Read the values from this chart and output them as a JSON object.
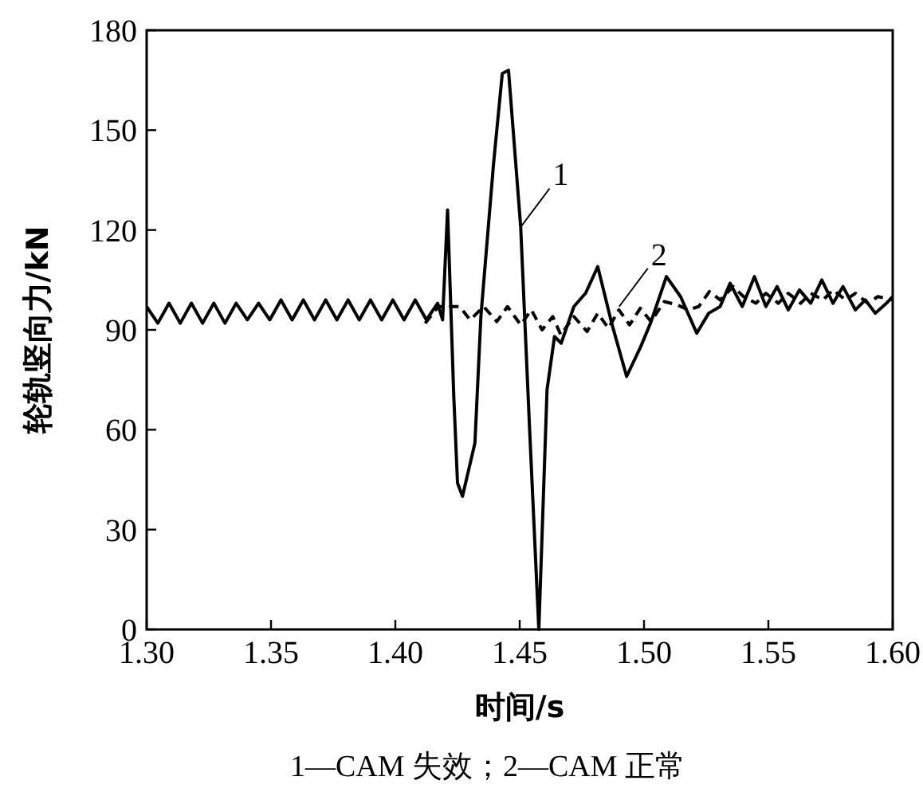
{
  "chart_data": {
    "type": "line",
    "xlabel": "时间/s",
    "ylabel": "轮轨竖向力/kN",
    "xlim": [
      1.3,
      1.6
    ],
    "ylim": [
      0,
      180
    ],
    "xticks": [
      {
        "value": 1.3,
        "label": "1.30"
      },
      {
        "value": 1.35,
        "label": "1.35"
      },
      {
        "value": 1.4,
        "label": "1.40"
      },
      {
        "value": 1.45,
        "label": "1.45"
      },
      {
        "value": 1.5,
        "label": "1.50"
      },
      {
        "value": 1.55,
        "label": "1.55"
      },
      {
        "value": 1.6,
        "label": "1.60"
      }
    ],
    "yticks": [
      0,
      30,
      60,
      90,
      120,
      150,
      180
    ],
    "series": [
      {
        "color": "#000000",
        "line_style": "solid",
        "x": [
          1.3,
          1.3045,
          1.309,
          1.3135,
          1.318,
          1.3225,
          1.327,
          1.3315,
          1.336,
          1.3405,
          1.345,
          1.3495,
          1.354,
          1.3585,
          1.363,
          1.3675,
          1.372,
          1.3765,
          1.381,
          1.3855,
          1.39,
          1.3945,
          1.399,
          1.4035,
          1.408,
          1.4125,
          1.417,
          1.419,
          1.421,
          1.4235,
          1.425,
          1.427,
          1.432,
          1.4344,
          1.4395,
          1.443,
          1.4455,
          1.4504,
          1.454,
          1.4577,
          1.461,
          1.464,
          1.4667,
          1.4718,
          1.4765,
          1.4814,
          1.487,
          1.493,
          1.4987,
          1.5026,
          1.509,
          1.5147,
          1.5212,
          1.526,
          1.5306,
          1.5346,
          1.5395,
          1.5444,
          1.549,
          1.5535,
          1.558,
          1.5625,
          1.567,
          1.5715,
          1.576,
          1.58,
          1.585,
          1.589,
          1.593,
          1.5975,
          1.6
        ],
        "values": [
          97,
          92,
          98,
          92,
          98,
          92,
          98,
          92,
          98,
          93,
          98,
          93,
          99,
          93,
          99,
          93,
          99,
          93,
          99,
          93,
          99,
          93,
          99,
          93,
          99,
          93,
          98,
          93,
          126,
          70,
          44,
          40,
          56,
          94,
          140,
          167,
          168,
          121,
          60,
          0,
          72,
          88,
          86,
          97,
          101,
          109,
          92,
          76,
          85,
          92,
          106,
          100,
          89,
          95,
          97,
          104,
          97,
          106,
          97,
          103,
          96,
          102,
          98,
          105,
          98,
          103,
          96,
          99,
          95,
          98,
          100
        ]
      },
      {
        "color": "#000000",
        "line_style": "dashed",
        "x": [
          1.412,
          1.4173,
          1.4258,
          1.4301,
          1.4355,
          1.4408,
          1.4451,
          1.4504,
          1.4547,
          1.459,
          1.4633,
          1.4665,
          1.4718,
          1.4771,
          1.4814,
          1.4857,
          1.4899,
          1.4942,
          1.4985,
          1.5028,
          1.5081,
          1.5135,
          1.5177,
          1.522,
          1.5263,
          1.5306,
          1.5359,
          1.54,
          1.545,
          1.549,
          1.554,
          1.558,
          1.563,
          1.567,
          1.572,
          1.576,
          1.581,
          1.585,
          1.59,
          1.594,
          1.6
        ],
        "values": [
          92,
          97,
          97,
          93,
          97,
          92.5,
          97,
          91.5,
          96,
          90,
          94,
          88.5,
          94,
          89.5,
          95,
          90.5,
          96,
          91.5,
          96.5,
          92.5,
          98.5,
          97.5,
          96,
          97,
          101.5,
          99,
          103,
          100,
          98,
          101,
          98,
          101,
          98,
          101,
          99,
          102,
          99,
          101,
          98,
          100,
          99
        ]
      }
    ],
    "annotations": [
      {
        "text": "1",
        "x": 1.4505,
        "y": 121
      },
      {
        "text": "2",
        "x": 1.49,
        "y": 97
      },
      "1—CAM 失效；2—CAM 正常"
    ]
  }
}
